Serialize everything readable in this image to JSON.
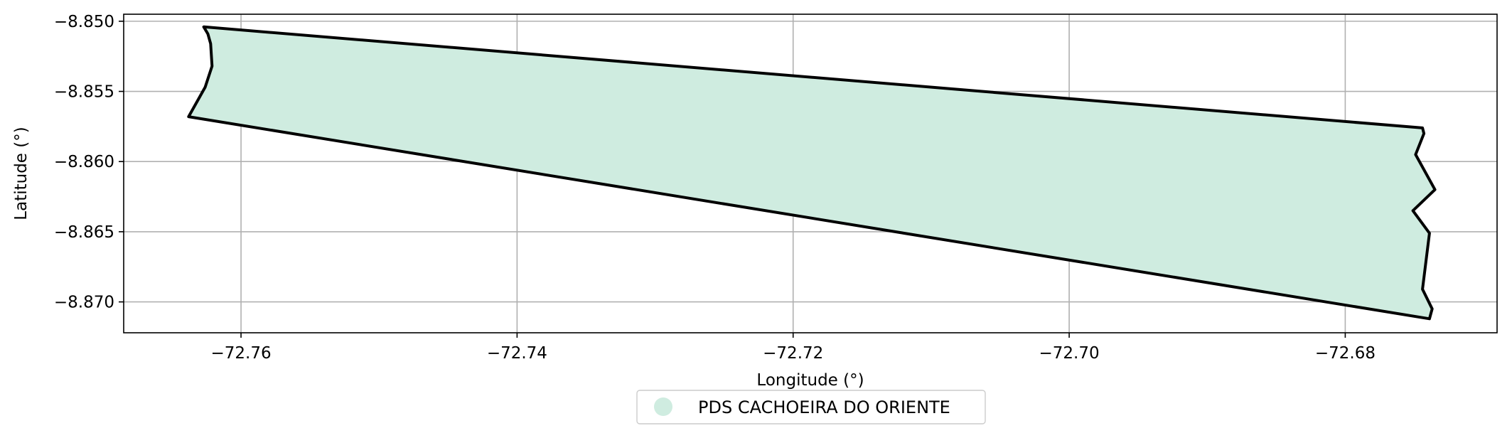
{
  "chart_data": {
    "type": "map",
    "xlabel": "Longitude (°)",
    "ylabel": "Latitude (°)",
    "xlim": [
      -72.7685,
      -72.669
    ],
    "ylim": [
      -8.8722,
      -8.8495
    ],
    "x_ticks": [
      -72.76,
      -72.74,
      -72.72,
      -72.7,
      -72.68
    ],
    "x_tick_labels": [
      "−72.76",
      "−72.74",
      "−72.72",
      "−72.70",
      "−72.68"
    ],
    "y_ticks": [
      -8.85,
      -8.855,
      -8.86,
      -8.865,
      -8.87
    ],
    "y_tick_labels": [
      "−8.850",
      "−8.855",
      "−8.860",
      "−8.865",
      "−8.870"
    ],
    "grid": true,
    "legend_position": "bottom-center",
    "series": [
      {
        "name": "PDS CACHOEIRA DO ORIENTE",
        "fill_color": "#cfece0",
        "edge_color": "#000000",
        "polygon": [
          [
            -72.7627,
            -8.8504
          ],
          [
            -72.6744,
            -8.8576
          ],
          [
            -72.6743,
            -8.858
          ],
          [
            -72.6749,
            -8.8595
          ],
          [
            -72.6735,
            -8.862
          ],
          [
            -72.6751,
            -8.8635
          ],
          [
            -72.6739,
            -8.8651
          ],
          [
            -72.6744,
            -8.8691
          ],
          [
            -72.6737,
            -8.8705
          ],
          [
            -72.6739,
            -8.8712
          ],
          [
            -72.7638,
            -8.8568
          ],
          [
            -72.7626,
            -8.8547
          ],
          [
            -72.7621,
            -8.8532
          ],
          [
            -72.7622,
            -8.8516
          ],
          [
            -72.7624,
            -8.8509
          ]
        ]
      }
    ]
  }
}
